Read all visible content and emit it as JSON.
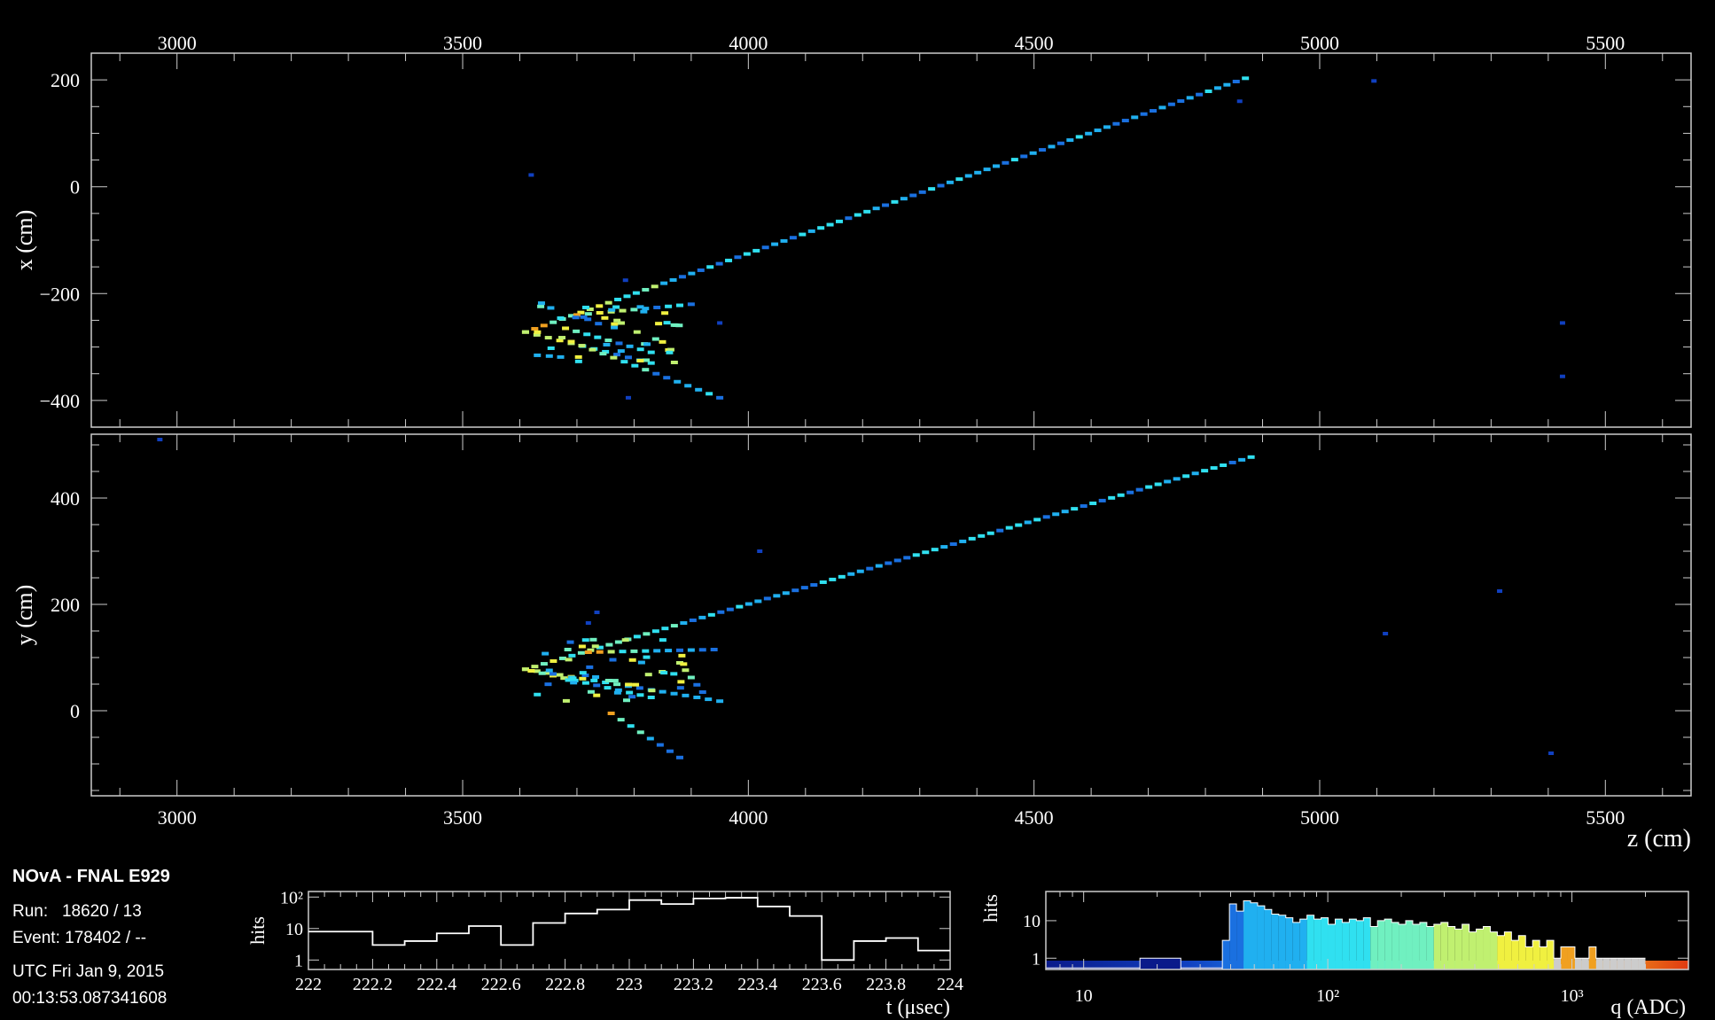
{
  "info": {
    "title": "NOvA - FNAL E929",
    "run_label": "Run:",
    "run_value": "18620 / 13",
    "event_label": "Event:",
    "event_value": "178402 / --",
    "date": "UTC Fri Jan 9, 2015",
    "time": "00:13:53.087341608"
  },
  "colors": {
    "background": "#000000",
    "frame": "#cccccc",
    "palette": [
      "#0a1a8a",
      "#1040c0",
      "#1a70e0",
      "#20b0f0",
      "#30e0f0",
      "#70f0c0",
      "#c0f070",
      "#f0f040",
      "#f0a020",
      "#e03a10"
    ]
  },
  "chart_data": [
    {
      "type": "scatter",
      "name_id": "xz-view",
      "ylabel": "x (cm)",
      "xlabel": "",
      "xlim": [
        2850,
        5650
      ],
      "ylim": [
        -450,
        250
      ],
      "x_ticks": [
        "3000",
        "3500",
        "4000",
        "4500",
        "5000",
        "5500"
      ],
      "y_ticks": [
        "200",
        "0",
        "−200",
        "−400"
      ],
      "y_tick_values": [
        200,
        0,
        -200,
        -400
      ],
      "main_track": {
        "start": [
          3610,
          -272
        ],
        "end": [
          4870,
          203
        ]
      },
      "branches": [
        {
          "start": [
            3610,
            -272
          ],
          "end": [
            3830,
            -330
          ]
        },
        {
          "start": [
            3690,
            -290
          ],
          "end": [
            3950,
            -395
          ]
        },
        {
          "start": [
            3700,
            -240
          ],
          "end": [
            3900,
            -220
          ]
        },
        {
          "start": [
            3680,
            -265
          ],
          "end": [
            3830,
            -310
          ]
        }
      ],
      "isolated_hits": [
        [
          3620,
          22
        ],
        [
          3785,
          -175
        ],
        [
          3790,
          -395
        ],
        [
          3950,
          -255
        ],
        [
          4860,
          160
        ],
        [
          5095,
          198
        ],
        [
          5425,
          -255
        ],
        [
          5425,
          -355
        ]
      ]
    },
    {
      "type": "scatter",
      "name_id": "yz-view",
      "ylabel": "y (cm)",
      "xlabel": "z (cm)",
      "xlim": [
        2850,
        5650
      ],
      "ylim": [
        -160,
        520
      ],
      "x_ticks": [
        "3000",
        "3500",
        "4000",
        "4500",
        "5000",
        "5500"
      ],
      "y_ticks": [
        "400",
        "200",
        "0"
      ],
      "y_tick_values": [
        400,
        200,
        0
      ],
      "main_track": {
        "start": [
          3610,
          78
        ],
        "end": [
          4880,
          477
        ]
      },
      "branches": [
        {
          "start": [
            3610,
            78
          ],
          "end": [
            3950,
            18
          ]
        },
        {
          "start": [
            3620,
            75
          ],
          "end": [
            3830,
            25
          ]
        },
        {
          "start": [
            3760,
            -5
          ],
          "end": [
            3880,
            -88
          ]
        },
        {
          "start": [
            3720,
            110
          ],
          "end": [
            3940,
            115
          ]
        },
        {
          "start": [
            3880,
            90
          ],
          "end": [
            3920,
            35
          ]
        }
      ],
      "isolated_hits": [
        [
          2970,
          510
        ],
        [
          3720,
          165
        ],
        [
          3735,
          185
        ],
        [
          4020,
          300
        ],
        [
          5115,
          145
        ],
        [
          5315,
          225
        ],
        [
          5405,
          -80
        ]
      ]
    },
    {
      "type": "line",
      "name_id": "time-histogram",
      "ylabel": "hits",
      "xlabel": "t (μsec)",
      "scale": "log",
      "xlim": [
        222,
        224
      ],
      "ylim": [
        0.5,
        150
      ],
      "x_ticks": [
        "222",
        "222.2",
        "222.4",
        "222.6",
        "222.8",
        "223",
        "223.2",
        "223.4",
        "223.6",
        "223.8",
        "224"
      ],
      "y_tick_labels": [
        "1",
        "10",
        "10²"
      ],
      "y_tick_values": [
        1,
        10,
        100
      ],
      "bin_edges": [
        222.0,
        222.2,
        222.3,
        222.4,
        222.5,
        222.6,
        222.7,
        222.8,
        222.9,
        223.0,
        223.1,
        223.2,
        223.3,
        223.4,
        223.5,
        223.6,
        223.7,
        223.8,
        223.9,
        224.0
      ],
      "values": [
        8,
        3,
        4,
        7,
        12,
        3,
        15,
        30,
        40,
        80,
        60,
        90,
        95,
        50,
        25,
        1,
        4,
        5,
        2
      ]
    },
    {
      "type": "bar",
      "name_id": "charge-histogram",
      "ylabel": "hits",
      "xlabel": "q (ADC)",
      "scale": "log-log",
      "xlim": [
        7,
        3000
      ],
      "ylim": [
        0.5,
        60
      ],
      "x_tick_labels": [
        "10",
        "10²",
        "10³"
      ],
      "x_tick_values": [
        10,
        100,
        1000
      ],
      "y_tick_labels": [
        "1",
        "10"
      ],
      "y_tick_values": [
        1,
        10
      ],
      "coarse_bins": [
        [
          7,
          17,
          0.5
        ],
        [
          17,
          25,
          1
        ],
        [
          25,
          37,
          0.5
        ]
      ],
      "values": [
        3,
        28,
        18,
        34,
        30,
        25,
        20,
        15,
        14,
        12,
        9,
        11,
        14,
        11,
        12,
        8,
        11,
        9,
        11,
        10,
        12,
        7,
        10,
        11,
        9,
        8,
        10,
        8,
        9,
        7,
        8,
        9,
        7,
        6,
        8,
        5,
        6,
        7,
        5,
        4,
        5,
        3,
        4,
        2,
        3,
        2,
        3,
        1,
        2,
        2,
        1,
        1,
        2,
        1,
        1,
        1,
        1,
        1,
        1,
        1
      ]
    }
  ]
}
